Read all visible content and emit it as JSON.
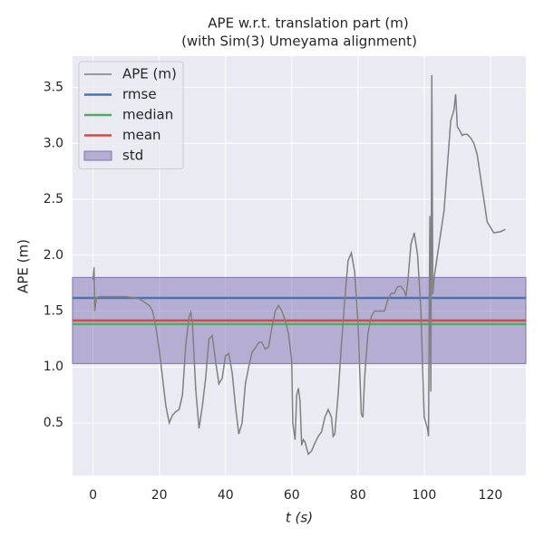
{
  "chart_data": {
    "type": "line",
    "title": "APE w.r.t. translation part (m)",
    "subtitle": "(with Sim(3) Umeyama alignment)",
    "xlabel": "t (s)",
    "ylabel": "APE (m)",
    "xlim": [
      -6.2,
      130.7
    ],
    "ylim": [
      0.03,
      3.78
    ],
    "xticks": [
      0,
      20,
      40,
      60,
      80,
      100,
      120
    ],
    "yticks": [
      0.5,
      {
        "value": 1,
        "label": "1.0"
      },
      1.5,
      {
        "value": 2,
        "label": "2.0"
      },
      2.5,
      {
        "value": 3,
        "label": "3.0"
      },
      3.5
    ],
    "grid": true,
    "legend": "upper left",
    "series": [
      {
        "name": "APE (m)",
        "color": "#808080",
        "x": [
          0,
          0.3,
          0.5,
          1,
          2,
          5,
          10,
          12,
          14,
          16,
          17,
          18,
          19,
          20,
          21,
          22,
          23,
          24,
          25,
          26,
          27,
          28,
          29,
          29.5,
          30,
          31,
          32,
          33,
          34,
          35,
          36,
          37,
          38,
          39,
          40,
          41,
          42,
          43,
          44,
          45,
          46,
          47,
          48,
          49,
          50,
          51,
          52,
          53,
          54,
          55,
          56,
          57,
          58,
          59,
          60,
          60.3,
          61,
          61.5,
          62,
          62.5,
          63,
          63.5,
          64,
          65,
          66,
          67,
          68,
          69,
          70,
          71,
          72,
          72.5,
          73,
          74,
          75,
          76,
          77,
          78,
          79,
          80,
          81,
          81.5,
          82,
          83,
          84,
          85,
          87,
          88,
          89,
          90,
          91,
          92,
          93,
          94,
          94.5,
          95,
          96,
          97,
          98,
          99,
          100,
          101,
          101.3,
          101.7,
          102,
          102.3,
          102.6,
          103,
          104,
          105,
          106,
          107,
          108,
          109,
          109.5,
          110,
          111,
          111.5,
          112,
          113,
          114,
          115,
          116,
          117,
          118,
          119,
          120,
          121,
          123,
          124.5
        ],
        "values": [
          1.78,
          1.89,
          1.5,
          1.62,
          1.63,
          1.63,
          1.63,
          1.62,
          1.61,
          1.57,
          1.55,
          1.5,
          1.35,
          1.15,
          0.9,
          0.65,
          0.5,
          0.57,
          0.6,
          0.62,
          0.75,
          1.2,
          1.45,
          1.49,
          1.4,
          0.8,
          0.45,
          0.65,
          0.9,
          1.25,
          1.28,
          1.05,
          0.85,
          0.9,
          1.1,
          1.12,
          0.95,
          0.65,
          0.4,
          0.5,
          0.85,
          1.0,
          1.13,
          1.17,
          1.22,
          1.22,
          1.16,
          1.18,
          1.35,
          1.5,
          1.55,
          1.5,
          1.42,
          1.3,
          1.05,
          0.5,
          0.35,
          0.75,
          0.81,
          0.7,
          0.3,
          0.35,
          0.33,
          0.22,
          0.25,
          0.32,
          0.38,
          0.42,
          0.55,
          0.62,
          0.55,
          0.38,
          0.4,
          0.75,
          1.2,
          1.6,
          1.95,
          2.02,
          1.85,
          1.4,
          0.58,
          0.55,
          0.9,
          1.3,
          1.45,
          1.5,
          1.5,
          1.5,
          1.6,
          1.66,
          1.66,
          1.72,
          1.72,
          1.68,
          1.63,
          1.75,
          2.1,
          2.2,
          2.0,
          1.5,
          0.55,
          0.45,
          0.38,
          2.35,
          0.78,
          3.61,
          1.65,
          1.8,
          2.0,
          2.2,
          2.4,
          2.8,
          3.2,
          3.3,
          3.44,
          3.15,
          3.1,
          3.07,
          3.08,
          3.08,
          3.05,
          3.0,
          2.9,
          2.7,
          2.5,
          2.3,
          2.25,
          2.2,
          2.21,
          2.23
        ]
      }
    ],
    "stats": [
      {
        "name": "rmse",
        "color": "#4c72b0",
        "value": 1.617
      },
      {
        "name": "median",
        "color": "#55a868",
        "value": 1.384
      },
      {
        "name": "mean",
        "color": "#c44e52",
        "value": 1.416
      }
    ],
    "std": {
      "name": "std",
      "color": "#8172b2",
      "value": 0.385
    }
  }
}
